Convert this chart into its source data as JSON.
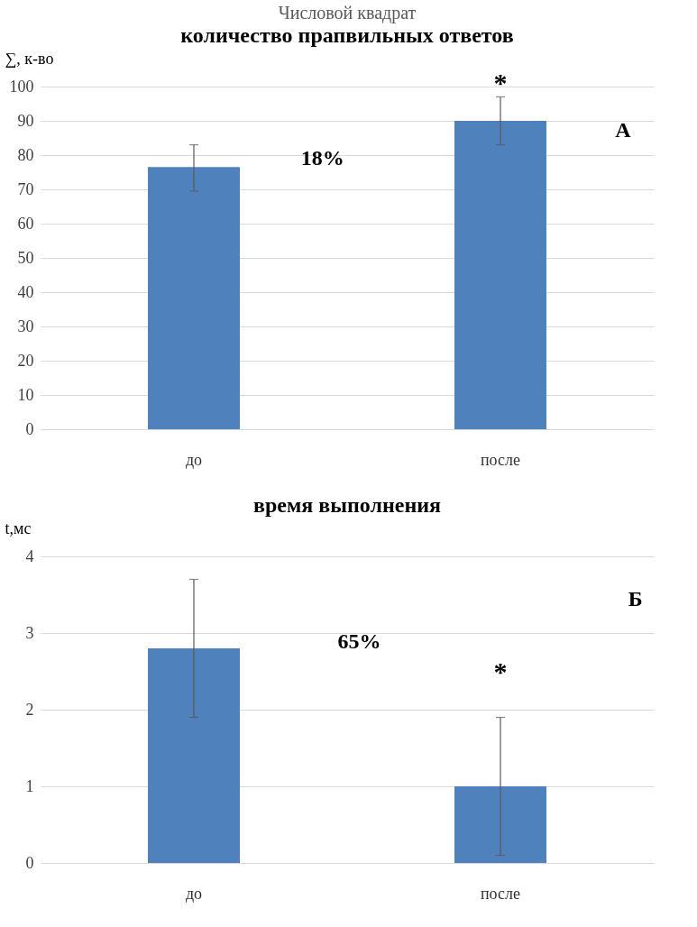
{
  "chart_data": [
    {
      "type": "bar",
      "title": "Числовой квадрат",
      "subtitle": "количество прапвильных ответов",
      "ylabel": "∑, к-во",
      "categories": [
        "до",
        "после"
      ],
      "values": [
        76.5,
        90
      ],
      "errors": [
        [
          69.5,
          83
        ],
        [
          83,
          97
        ]
      ],
      "color": "#4f81bd",
      "ylim": [
        0,
        100
      ],
      "yticks": [
        0,
        10,
        20,
        30,
        40,
        50,
        60,
        70,
        80,
        90,
        100
      ],
      "grid": "y",
      "annotations": [
        "18%",
        {
          "text": "*",
          "x": "после",
          "y": 97
        },
        "А"
      ]
    },
    {
      "type": "bar",
      "title": "время выполнения",
      "ylabel": "t,мс",
      "categories": [
        "до",
        "после"
      ],
      "values": [
        2.8,
        1.0
      ],
      "errors": [
        [
          1.9,
          3.7
        ],
        [
          0.1,
          1.9
        ]
      ],
      "color": "#4f81bd",
      "ylim": [
        0,
        4
      ],
      "yticks": [
        0,
        1,
        2,
        3,
        4
      ],
      "grid": "y",
      "annotations": [
        "65%",
        {
          "text": "*",
          "x": "после",
          "y": 1.9
        },
        "Б"
      ]
    }
  ]
}
